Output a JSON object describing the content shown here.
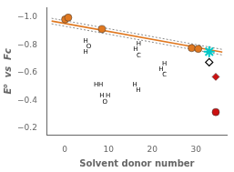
{
  "chart_data": {
    "type": "scatter",
    "xlabel": "Solvent donor number",
    "ylabel": "E⁰  vs  Fc",
    "xlim": [
      -4,
      37
    ],
    "ylim": [
      -0.15,
      -1.07
    ],
    "xticks": [
      0,
      10,
      20,
      30
    ],
    "yticks": [
      {
        "value": -1.0,
        "label": "−1.0"
      },
      {
        "value": -0.8,
        "label": "−0.8"
      },
      {
        "value": -0.6,
        "label": "−0.6"
      },
      {
        "value": -0.4,
        "label": "−0.4"
      },
      {
        "value": -0.2,
        "label": "−0.2"
      }
    ],
    "grid": false,
    "series": [
      {
        "type": "line",
        "line_style": "dotted",
        "color": "#888888",
        "x": [
          -3,
          36
        ],
        "values": [
          -0.953,
          -0.728
        ]
      },
      {
        "type": "line",
        "line_style": "dotted",
        "color": "#888888",
        "x": [
          -3,
          36
        ],
        "values": [
          -0.993,
          -0.768
        ]
      },
      {
        "type": "line",
        "line_style": "solid",
        "color": "#e07820",
        "x": [
          -3,
          36
        ],
        "values": [
          -0.973,
          -0.748
        ]
      },
      {
        "type": "scatter",
        "marker": "circle",
        "color": "#e07820",
        "x": [
          0.1,
          0.8,
          8.5,
          29.0,
          30.5
        ],
        "values": [
          -0.985,
          -0.998,
          -0.915,
          -0.778,
          -0.772
        ]
      },
      {
        "type": "scatter",
        "marker": "star",
        "color": "#00c8c8",
        "x": [
          33.0
        ],
        "values": [
          -0.752
        ]
      },
      {
        "type": "scatter",
        "marker": "diamond",
        "color": "#ffffff",
        "x": [
          33.0
        ],
        "values": [
          -0.675
        ]
      },
      {
        "type": "scatter",
        "marker": "diamond",
        "color": "#cc1010",
        "x": [
          34.5
        ],
        "values": [
          -0.57
        ]
      },
      {
        "type": "scatter",
        "marker": "circle",
        "color": "#cc1010",
        "x": [
          34.5
        ],
        "values": [
          -0.315
        ]
      }
    ],
    "annotations": [
      {
        "text": "H",
        "x": 7.2,
        "y": -0.5
      },
      {
        "text": "H",
        "x": 8.2,
        "y": -0.5
      },
      {
        "text": "H",
        "x": 4.8,
        "y": -0.735
      },
      {
        "text": "O",
        "x": 5.5,
        "y": -0.775
      },
      {
        "text": "H",
        "x": 4.8,
        "y": -0.815
      },
      {
        "text": "O",
        "x": 9.2,
        "y": -0.375
      },
      {
        "text": "H",
        "x": 8.5,
        "y": -0.42
      },
      {
        "text": "H",
        "x": 9.9,
        "y": -0.42
      },
      {
        "text": "H",
        "x": 16.0,
        "y": -0.5
      },
      {
        "text": "H",
        "x": 16.8,
        "y": -0.46
      },
      {
        "text": "H",
        "x": 16.2,
        "y": -0.755
      },
      {
        "text": "C",
        "x": 16.9,
        "y": -0.71
      },
      {
        "text": "H",
        "x": 16.9,
        "y": -0.795
      },
      {
        "text": "H",
        "x": 22.0,
        "y": -0.61
      },
      {
        "text": "C",
        "x": 22.8,
        "y": -0.57
      },
      {
        "text": "H",
        "x": 22.8,
        "y": -0.65
      }
    ]
  }
}
